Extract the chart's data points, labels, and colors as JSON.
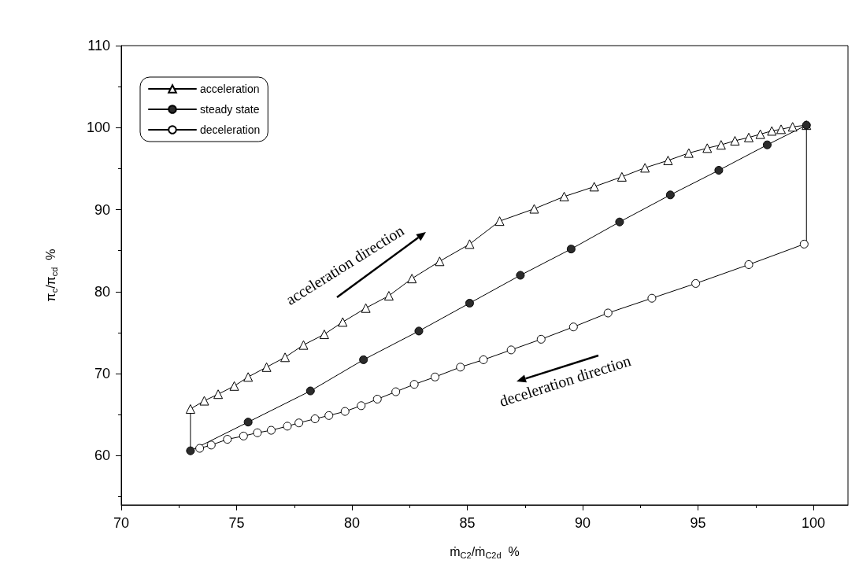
{
  "chart_data": {
    "type": "line",
    "xlabel": "ṁ$_{C2}$/ṁ$_{C2d}$  %",
    "ylabel": "π$_{c}$/π$_{cd}$  %",
    "xlim": [
      70,
      101.5
    ],
    "xticks": [
      70,
      75,
      80,
      85,
      90,
      95,
      100
    ],
    "ylim": [
      54,
      110
    ],
    "yticks": [
      60,
      70,
      80,
      90,
      100,
      110
    ],
    "grid": false,
    "legend": "top left",
    "line_style": "solid",
    "annotations": [
      "acceleration direction",
      "deceleration direction"
    ],
    "series": [
      {
        "name": "acceleration",
        "color": "#ffffff",
        "marker": "triangle",
        "x": [
          73.0,
          73.6,
          74.2,
          74.9,
          75.5,
          76.3,
          77.1,
          77.9,
          78.8,
          79.6,
          80.6,
          81.6,
          82.6,
          83.8,
          85.1,
          86.4,
          87.9,
          89.2,
          90.5,
          91.7,
          92.7,
          93.7,
          94.6,
          95.4,
          96.0,
          96.6,
          97.2,
          97.7,
          98.2,
          98.6,
          99.1,
          99.7
        ],
        "values": [
          65.7,
          66.7,
          67.5,
          68.5,
          69.6,
          70.8,
          72.0,
          73.5,
          74.8,
          76.3,
          78.0,
          79.5,
          81.6,
          83.7,
          85.8,
          88.6,
          90.1,
          91.6,
          92.8,
          94.0,
          95.1,
          96.0,
          96.9,
          97.5,
          97.9,
          98.4,
          98.8,
          99.2,
          99.6,
          99.8,
          100.1,
          100.3
        ]
      },
      {
        "name": "steady state",
        "color": "#2b2b2b",
        "marker": "circle",
        "x": [
          73.0,
          75.5,
          78.2,
          80.5,
          82.9,
          85.1,
          87.3,
          89.5,
          91.6,
          93.8,
          95.9,
          98.0,
          99.7
        ],
        "values": [
          60.6,
          64.1,
          67.9,
          71.7,
          75.2,
          78.6,
          82.0,
          85.2,
          88.5,
          91.8,
          94.8,
          97.9,
          100.3
        ]
      },
      {
        "name": "deceleration",
        "color": "#ffffff",
        "marker": "circle",
        "x": [
          99.6,
          97.2,
          94.9,
          93.0,
          91.1,
          89.6,
          88.2,
          86.9,
          85.7,
          84.7,
          83.6,
          82.7,
          81.9,
          81.1,
          80.4,
          79.7,
          79.0,
          78.4,
          77.7,
          77.2,
          76.5,
          75.9,
          75.3,
          74.6,
          73.9,
          73.4
        ],
        "values": [
          85.8,
          83.3,
          81.0,
          79.2,
          77.4,
          75.7,
          74.2,
          72.9,
          71.7,
          70.8,
          69.6,
          68.7,
          67.8,
          66.9,
          66.1,
          65.4,
          64.9,
          64.5,
          64.0,
          63.6,
          63.1,
          62.8,
          62.4,
          62.0,
          61.3,
          60.9
        ]
      },
      {
        "color": "#000000",
        "marker": "none",
        "x": [
          73.0,
          73.0,
          86.0,
          99.7,
          99.7
        ],
        "values": [
          60.6,
          65.7,
          null,
          100.3,
          85.8
        ]
      }
    ]
  }
}
